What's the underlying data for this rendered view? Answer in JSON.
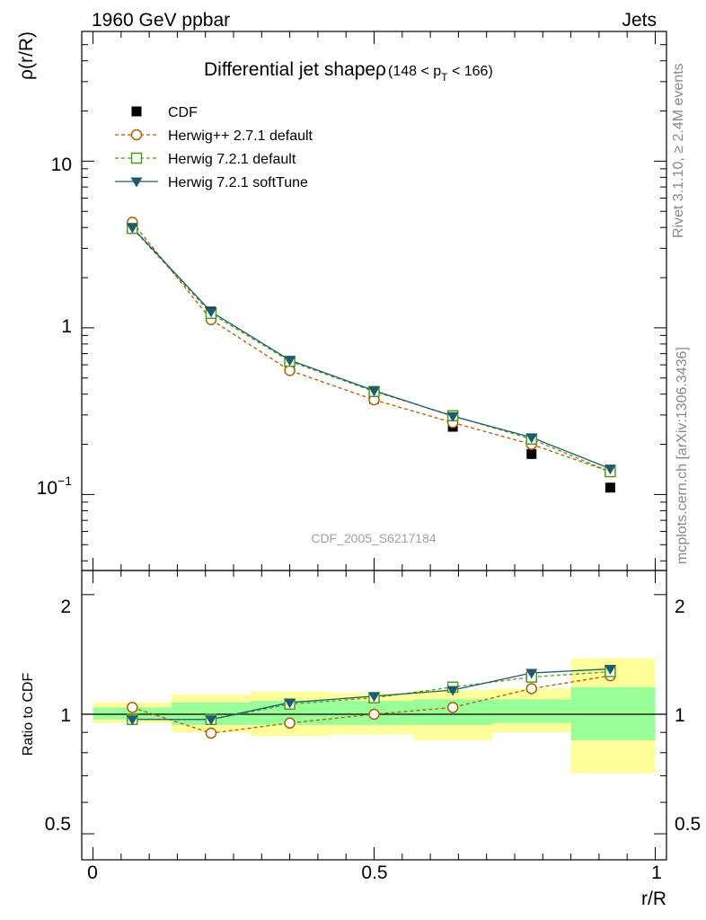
{
  "header": {
    "left": "1960 GeV ppbar",
    "right": "Jets"
  },
  "side_labels": {
    "rivet": "Rivet 3.1.10, ≥ 2.4M events",
    "mcplots": "mcplots.cern.ch [arXiv:1306.3436]"
  },
  "chart_data": [
    {
      "type": "line",
      "panel": "main",
      "title": "Differential jet shapeρ",
      "title_range": {
        "open": "(148 < p",
        "sub": "T",
        "close": " < 166)"
      },
      "watermark": "CDF_2005_S6217184",
      "ylabel": "ρ(r/R)",
      "yscale": "log",
      "ylim": [
        0.035,
        60
      ],
      "xlim": [
        -0.02,
        1.02
      ],
      "y_tick_labels": [
        {
          "value": 10,
          "label": "10"
        },
        {
          "value": 1,
          "label": "1"
        },
        {
          "value": 0.1,
          "label_base": "10",
          "label_exp": "−1"
        }
      ],
      "legend_position": "top-left",
      "x": [
        0.07,
        0.21,
        0.35,
        0.5,
        0.64,
        0.78,
        0.92
      ],
      "series": [
        {
          "name": "CDF",
          "marker": "square-filled",
          "color": "#000000",
          "line": "none",
          "values": [
            4.1,
            1.25,
            0.6,
            0.375,
            0.255,
            0.175,
            0.11
          ]
        },
        {
          "name": "Herwig++ 2.7.1 default",
          "marker": "circle-open",
          "color": "#b25c00",
          "line": "dashed",
          "values": [
            4.3,
            1.12,
            0.555,
            0.37,
            0.27,
            0.2,
            0.137
          ]
        },
        {
          "name": "Herwig 7.2.1 default",
          "marker": "square-open",
          "color": "#4a9e1b",
          "line": "dashed",
          "values": [
            3.95,
            1.22,
            0.63,
            0.415,
            0.297,
            0.215,
            0.137
          ]
        },
        {
          "name": "Herwig 7.2.1 softTune",
          "marker": "triangle-down-filled",
          "color": "#1f5a6e",
          "line": "solid",
          "values": [
            4.0,
            1.25,
            0.64,
            0.42,
            0.295,
            0.22,
            0.143
          ]
        }
      ]
    },
    {
      "type": "line",
      "panel": "ratio",
      "ylabel": "Ratio to CDF",
      "xlabel": "r/R",
      "yscale": "log",
      "ylim": [
        0.43,
        2.3
      ],
      "xlim": [
        -0.02,
        1.02
      ],
      "y_tick_labels": [
        {
          "value": 2,
          "label": "2"
        },
        {
          "value": 1,
          "label": "1"
        },
        {
          "value": 0.5,
          "label": "0.5"
        }
      ],
      "x_tick_labels": [
        {
          "value": 0,
          "label": "0"
        },
        {
          "value": 0.5,
          "label": "0.5"
        },
        {
          "value": 1,
          "label": "1"
        }
      ],
      "reference_line": 1,
      "bands": {
        "bin_edges": [
          0,
          0.14,
          0.28,
          0.42,
          0.57,
          0.71,
          0.85,
          1.0
        ],
        "outer_color": "#ffff99",
        "inner_color": "#99ff99",
        "outer": [
          [
            0.95,
            1.07
          ],
          [
            0.9,
            1.12
          ],
          [
            0.88,
            1.14
          ],
          [
            0.89,
            1.13
          ],
          [
            0.86,
            1.15
          ],
          [
            0.9,
            1.16
          ],
          [
            0.71,
            1.38
          ]
        ],
        "inner": [
          [
            0.97,
            1.04
          ],
          [
            0.94,
            1.07
          ],
          [
            0.94,
            1.08
          ],
          [
            0.94,
            1.08
          ],
          [
            0.94,
            1.09
          ],
          [
            0.95,
            1.09
          ],
          [
            0.86,
            1.17
          ]
        ]
      },
      "x": [
        0.07,
        0.21,
        0.35,
        0.5,
        0.64,
        0.78,
        0.92
      ],
      "series": [
        {
          "name": "Herwig++ 2.7.1 default",
          "marker": "circle-open",
          "color": "#b25c00",
          "line": "dashed",
          "values": [
            1.04,
            0.896,
            0.95,
            1.0,
            1.04,
            1.16,
            1.25
          ]
        },
        {
          "name": "Herwig 7.2.1 default",
          "marker": "square-open",
          "color": "#4a9e1b",
          "line": "dashed",
          "values": [
            0.97,
            0.97,
            1.06,
            1.1,
            1.17,
            1.24,
            1.28
          ]
        },
        {
          "name": "Herwig 7.2.1 softTune",
          "marker": "triangle-down-filled",
          "color": "#1f5a6e",
          "line": "solid",
          "values": [
            0.97,
            0.97,
            1.07,
            1.11,
            1.15,
            1.27,
            1.3
          ]
        }
      ]
    }
  ]
}
